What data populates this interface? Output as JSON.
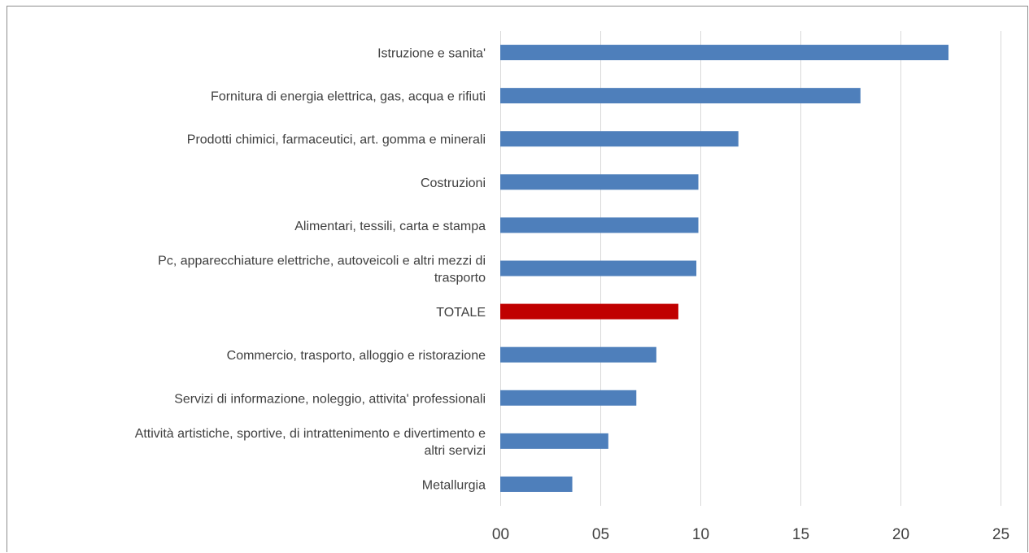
{
  "chart_data": {
    "type": "bar",
    "orientation": "horizontal",
    "title": "",
    "xlabel": "",
    "ylabel": "",
    "xlim": [
      0,
      25
    ],
    "xticks": [
      0,
      5,
      10,
      15,
      20,
      25
    ],
    "xtick_labels": [
      "00",
      "05",
      "10",
      "15",
      "20",
      "25"
    ],
    "grid": true,
    "legend": "none",
    "categories": [
      "Istruzione e sanita'",
      "Fornitura di energia elettrica, gas, acqua e rifiuti",
      "Prodotti chimici, farmaceutici, art. gomma e minerali",
      "Costruzioni",
      "Alimentari, tessili, carta e stampa",
      "Pc, apparecchiature elettriche, autoveicoli e altri mezzi di trasporto",
      "TOTALE",
      "Commercio, trasporto, alloggio e ristorazione",
      "Servizi di informazione, noleggio, attivita' professionali",
      "Attività artistiche, sportive, di intrattenimento e divertimento e altri servizi",
      "Metallurgia"
    ],
    "category_lines": [
      [
        "Istruzione e sanita'"
      ],
      [
        "Fornitura di energia elettrica, gas, acqua e rifiuti"
      ],
      [
        "Prodotti chimici, farmaceutici, art. gomma e minerali"
      ],
      [
        "Costruzioni"
      ],
      [
        "Alimentari, tessili, carta e stampa"
      ],
      [
        "Pc, apparecchiature elettriche, autoveicoli e altri mezzi di",
        "trasporto"
      ],
      [
        "TOTALE"
      ],
      [
        "Commercio, trasporto, alloggio e ristorazione"
      ],
      [
        "Servizi di informazione, noleggio, attivita' professionali"
      ],
      [
        "Attività artistiche, sportive, di intrattenimento e divertimento e",
        "altri servizi"
      ],
      [
        "Metallurgia"
      ]
    ],
    "values": [
      22.4,
      18.0,
      11.9,
      9.9,
      9.9,
      9.8,
      8.9,
      7.8,
      6.8,
      5.4,
      3.6
    ],
    "colors": {
      "default": "#4e7fbb",
      "highlight": "#c00000",
      "grid": "#d9d9d9",
      "text": "#404040"
    },
    "highlight_category": "TOTALE"
  }
}
